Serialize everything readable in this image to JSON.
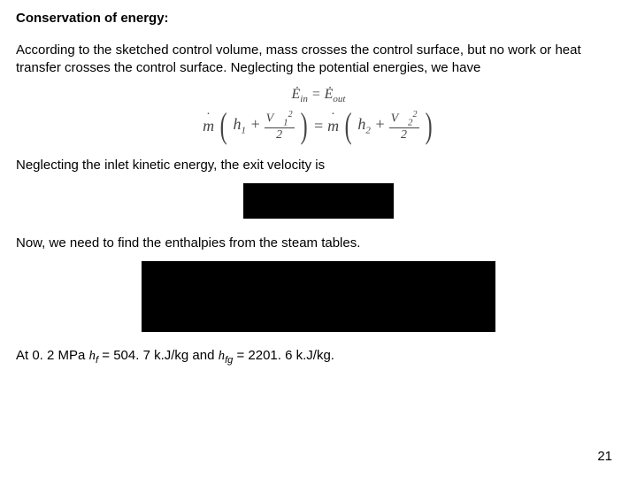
{
  "title": "Conservation of energy:",
  "para1": "According to the sketched control volume, mass crosses the control surface, but no work or heat transfer crosses the control surface.  Neglecting the potential energies, we have",
  "eq1": {
    "Ein": "Ė",
    "sub_in": "in",
    "eq": " = ",
    "Eout": "Ė",
    "sub_out": "out"
  },
  "eq2": {
    "m": "m",
    "h1": "h",
    "s1": "1",
    "plus": " + ",
    "V1": "V",
    "v1s": "1",
    "sq": "2",
    "denom": "2",
    "eqs": " = ",
    "h2": "h",
    "s2": "2",
    "V2": "V",
    "v2s": "2"
  },
  "para2": "Neglecting the inlet kinetic energy, the exit velocity is",
  "para3": "Now, we need to find the enthalpies from the steam tables.",
  "final": {
    "prefix": "At 0. 2 MPa ",
    "hf_sym": "h",
    "hf_sub": "f",
    "hf_eq": " = 504. 7 k.J/kg and ",
    "hfg_sym": "h",
    "hfg_sub": "fg",
    "hfg_eq": " = 2201. 6 k.J/kg."
  },
  "pageNumber": "21",
  "colors": {
    "text": "#000000",
    "eq": "#444444",
    "bg": "#ffffff",
    "box": "#000000"
  }
}
